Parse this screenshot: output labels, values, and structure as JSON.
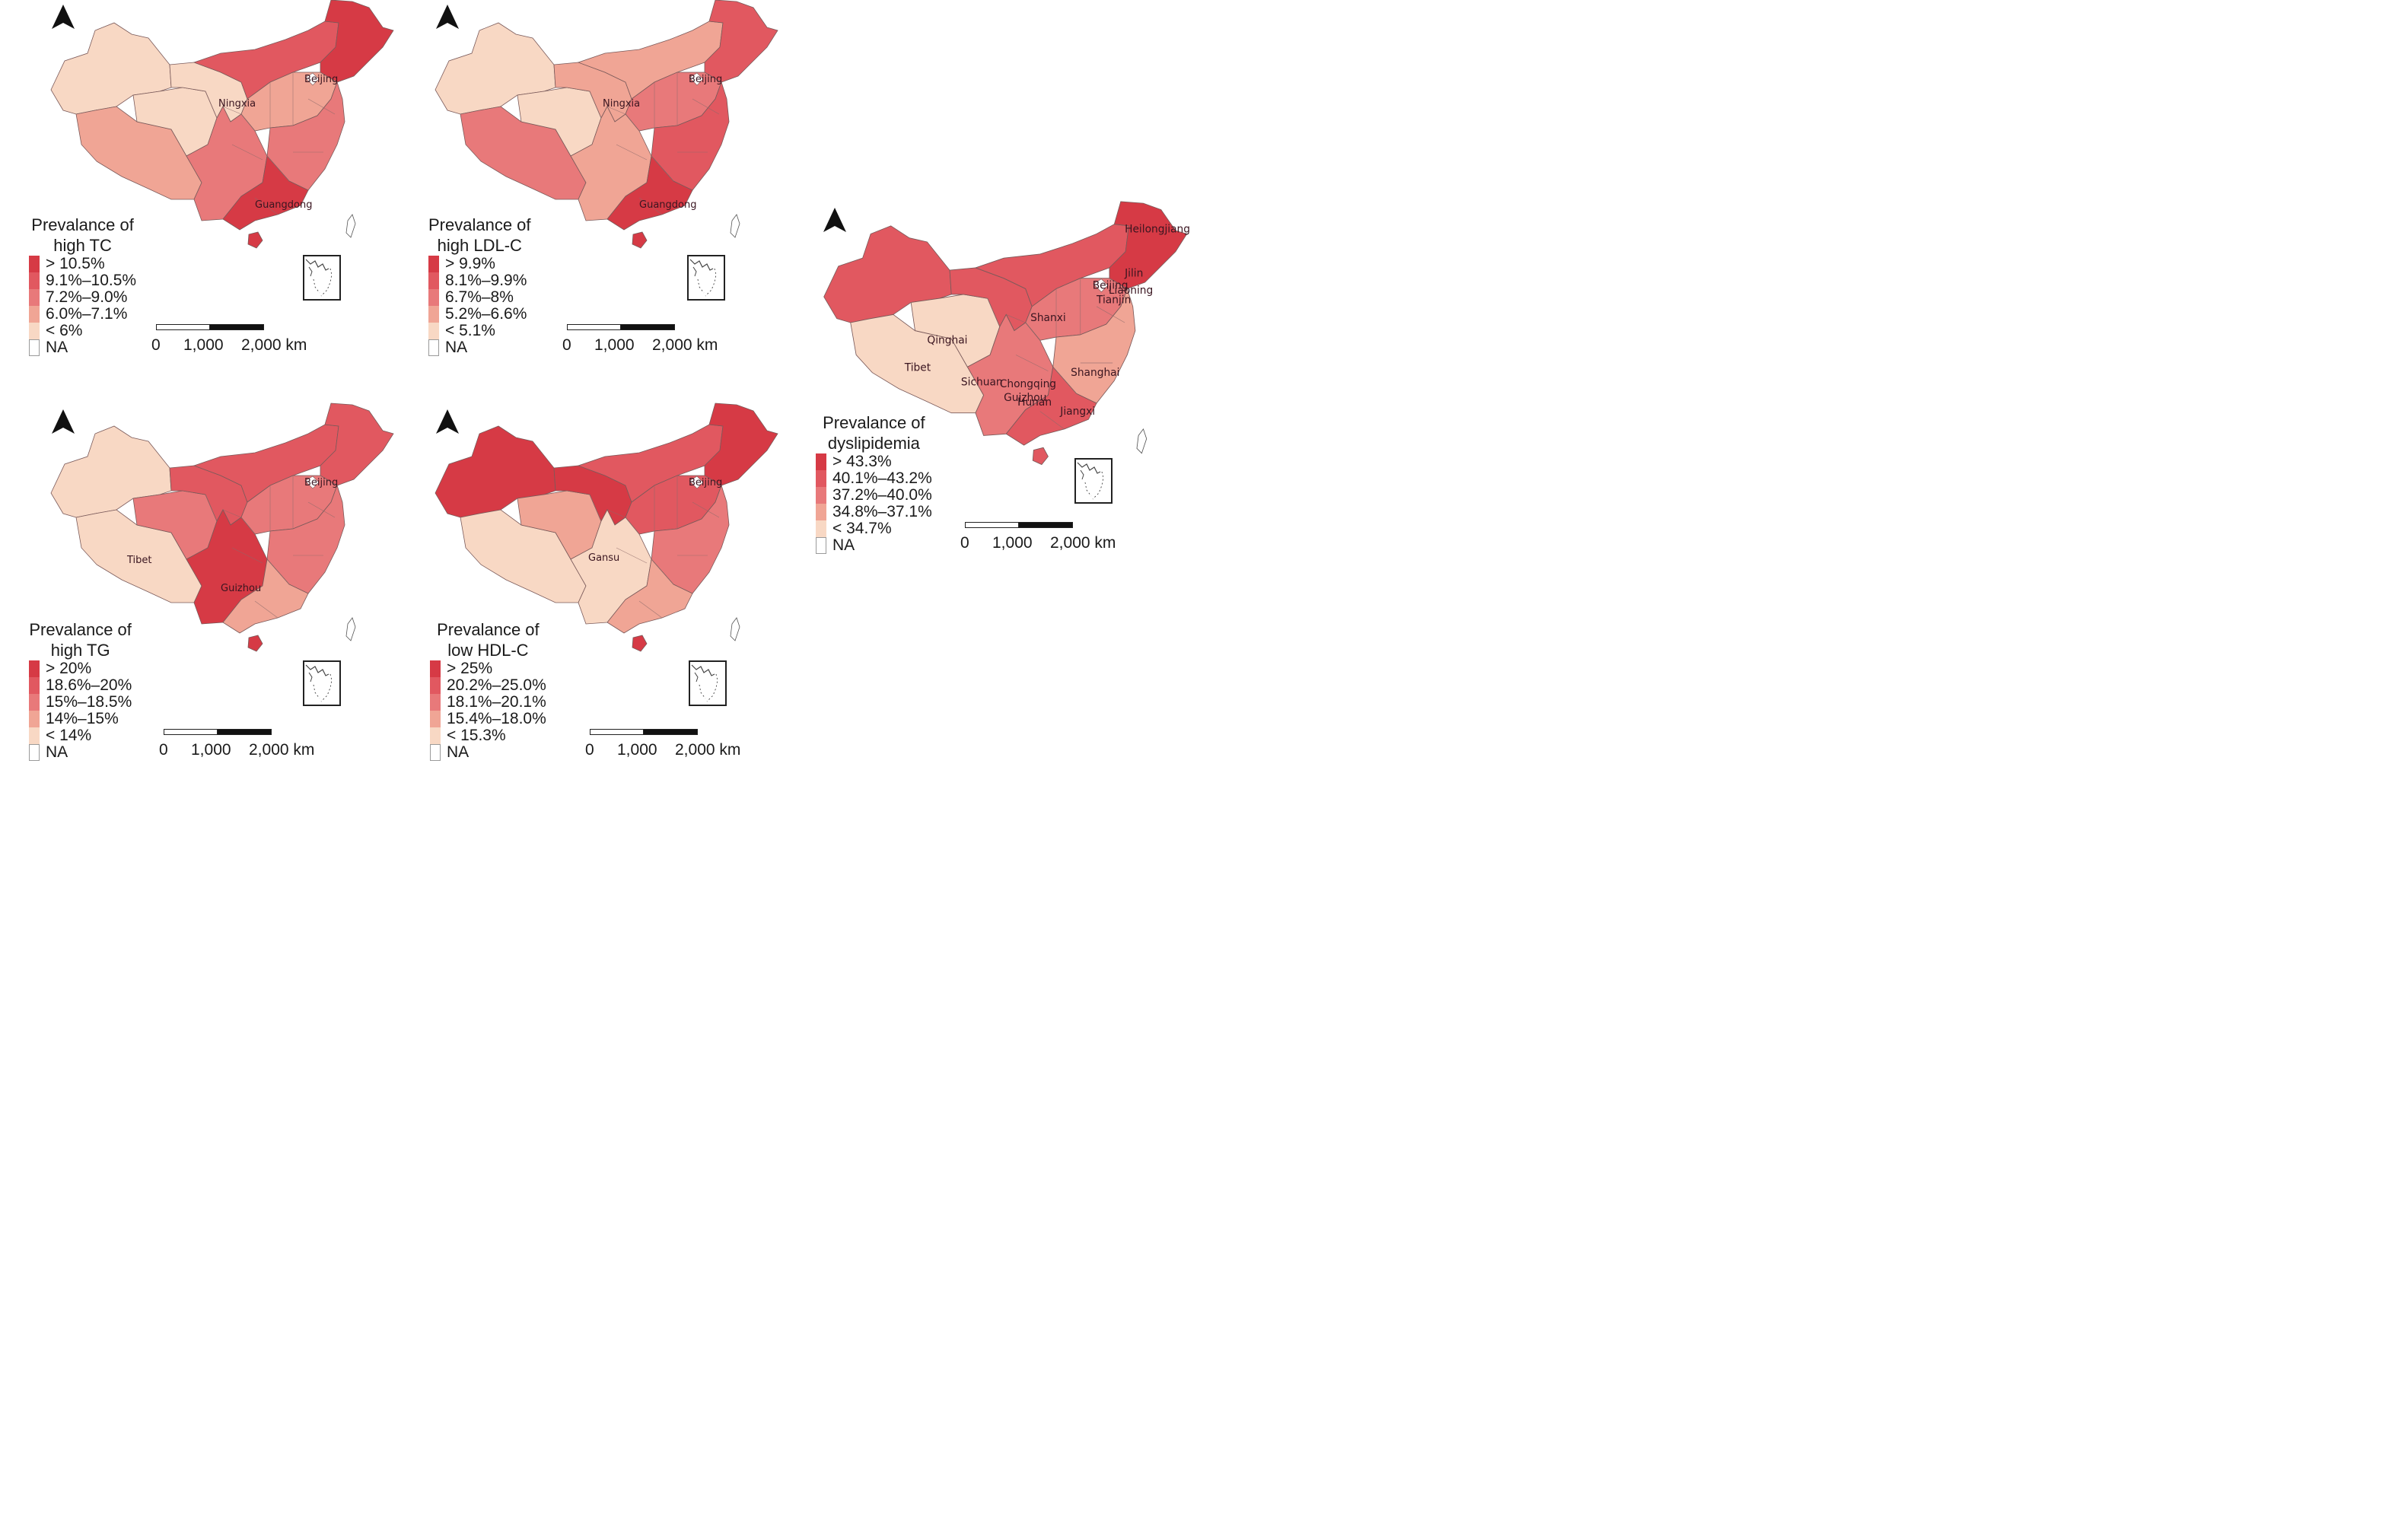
{
  "maps": [
    {
      "id": "tc",
      "legend_title": "Prevalance of\nhigh TC",
      "legend": [
        {
          "label": "> 10.5%",
          "color": "#d63a45"
        },
        {
          "label": "9.1%–10.5%",
          "color": "#e15860"
        },
        {
          "label": "7.2%–9.0%",
          "color": "#e8797a"
        },
        {
          "label": "6.0%–7.1%",
          "color": "#f0a595"
        },
        {
          "label": "< 6%",
          "color": "#f8d8c4"
        },
        {
          "label": "NA",
          "color": "#ffffff"
        }
      ],
      "labels": [
        "Beijing",
        "Ningxia",
        "Guangdong"
      ],
      "fills": {
        "xinjiang": "#f8d8c4",
        "tibet": "#f0a595",
        "qinghai": "#f8d8c4",
        "gansu": "#f8d8c4",
        "inner_mongolia": "#e15860",
        "northeast": "#d63a45",
        "north_central": "#f0a595",
        "southwest": "#e8797a",
        "south": "#d63a45",
        "east": "#e8797a",
        "hainan": "#d63a45"
      }
    },
    {
      "id": "ldlc",
      "legend_title": "Prevalance of\nhigh LDL-C",
      "legend": [
        {
          "label": "> 9.9%",
          "color": "#d63a45"
        },
        {
          "label": "8.1%–9.9%",
          "color": "#e15860"
        },
        {
          "label": "6.7%–8%",
          "color": "#e8797a"
        },
        {
          "label": "5.2%–6.6%",
          "color": "#f0a595"
        },
        {
          "label": "< 5.1%",
          "color": "#f8d8c4"
        },
        {
          "label": "NA",
          "color": "#ffffff"
        }
      ],
      "labels": [
        "Beijing",
        "Ningxia",
        "Guangdong"
      ],
      "fills": {
        "xinjiang": "#f8d8c4",
        "tibet": "#e8797a",
        "qinghai": "#f8d8c4",
        "gansu": "#f0a595",
        "inner_mongolia": "#f0a595",
        "northeast": "#e15860",
        "north_central": "#e8797a",
        "southwest": "#f0a595",
        "south": "#d63a45",
        "east": "#e15860",
        "hainan": "#d63a45"
      }
    },
    {
      "id": "tg",
      "legend_title": "Prevalance of\nhigh TG",
      "legend": [
        {
          "label": "> 20%",
          "color": "#d63a45"
        },
        {
          "label": "18.6%–20%",
          "color": "#e15860"
        },
        {
          "label": "15%–18.5%",
          "color": "#e8797a"
        },
        {
          "label": "14%–15%",
          "color": "#f0a595"
        },
        {
          "label": "< 14%",
          "color": "#f8d8c4"
        },
        {
          "label": "NA",
          "color": "#ffffff"
        }
      ],
      "labels": [
        "Beijing",
        "Tibet",
        "Guizhou"
      ],
      "fills": {
        "xinjiang": "#f8d8c4",
        "tibet": "#f8d8c4",
        "qinghai": "#e8797a",
        "gansu": "#e15860",
        "inner_mongolia": "#e15860",
        "northeast": "#e15860",
        "north_central": "#e8797a",
        "southwest": "#d63a45",
        "south": "#f0a595",
        "east": "#e8797a",
        "hainan": "#d63a45"
      }
    },
    {
      "id": "hdlc",
      "legend_title": "Prevalance of\nlow HDL-C",
      "legend": [
        {
          "label": "> 25%",
          "color": "#d63a45"
        },
        {
          "label": "20.2%–25.0%",
          "color": "#e15860"
        },
        {
          "label": "18.1%–20.1%",
          "color": "#e8797a"
        },
        {
          "label": "15.4%–18.0%",
          "color": "#f0a595"
        },
        {
          "label": "< 15.3%",
          "color": "#f8d8c4"
        },
        {
          "label": "NA",
          "color": "#ffffff"
        }
      ],
      "labels": [
        "Beijing",
        "Gansu"
      ],
      "fills": {
        "xinjiang": "#d63a45",
        "tibet": "#f8d8c4",
        "qinghai": "#f0a595",
        "gansu": "#d63a45",
        "inner_mongolia": "#e15860",
        "northeast": "#d63a45",
        "north_central": "#e15860",
        "southwest": "#f8d8c4",
        "south": "#f0a595",
        "east": "#e8797a",
        "hainan": "#d63a45"
      }
    },
    {
      "id": "dyslipidemia",
      "legend_title": "Prevalance of\ndyslipidemia",
      "legend": [
        {
          "label": "> 43.3%",
          "color": "#d63a45"
        },
        {
          "label": "40.1%–43.2%",
          "color": "#e15860"
        },
        {
          "label": "37.2%–40.0%",
          "color": "#e8797a"
        },
        {
          "label": "34.8%–37.1%",
          "color": "#f0a595"
        },
        {
          "label": "< 34.7%",
          "color": "#f8d8c4"
        },
        {
          "label": "NA",
          "color": "#ffffff"
        }
      ],
      "labels": [
        "Heilongjiang",
        "Jilin",
        "Liaoning",
        "Beijing",
        "Tianjin",
        "Shanxi",
        "Qinghai",
        "Tibet",
        "Sichuan",
        "Chongqing",
        "Shanghai",
        "Hunan",
        "Guizhou",
        "Jiangxi"
      ],
      "fills": {
        "xinjiang": "#e15860",
        "tibet": "#f8d8c4",
        "qinghai": "#f8d8c4",
        "gansu": "#e15860",
        "inner_mongolia": "#e15860",
        "northeast": "#d63a45",
        "north_central": "#e8797a",
        "southwest": "#e8797a",
        "south": "#e15860",
        "east": "#f0a595",
        "hainan": "#e15860"
      }
    }
  ],
  "scalebar": {
    "labels": [
      "0",
      "1,000",
      "2,000 km"
    ]
  },
  "icons": {
    "north_arrow": "north-arrow-icon",
    "inset": "south-china-sea-inset"
  }
}
